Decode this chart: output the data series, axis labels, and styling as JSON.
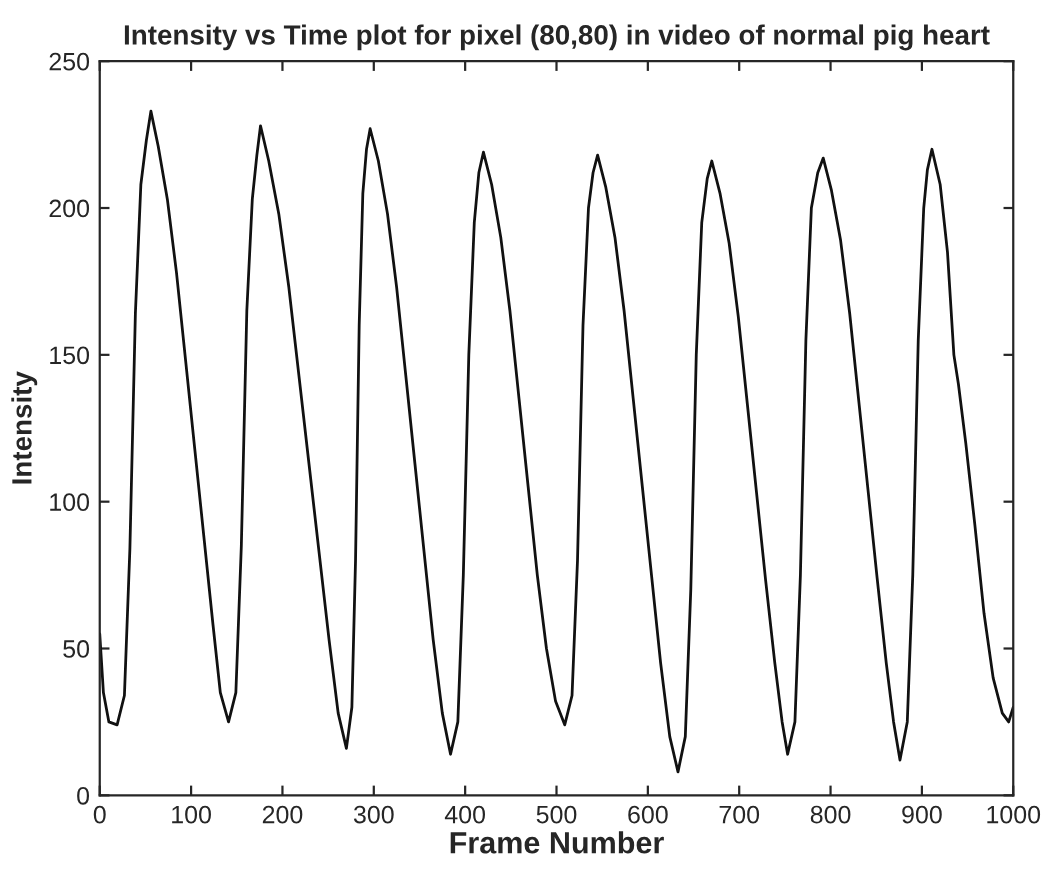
{
  "chart_data": {
    "type": "line",
    "title": "Intensity vs Time plot for pixel (80,80) in video of normal pig heart",
    "xlabel": "Frame Number",
    "ylabel": "Intensity",
    "xlim": [
      0,
      1000
    ],
    "xticks": [
      0,
      100,
      200,
      300,
      400,
      500,
      600,
      700,
      800,
      900,
      1000
    ],
    "ylim": [
      0,
      250
    ],
    "yticks": [
      0,
      50,
      100,
      150,
      200,
      250
    ],
    "grid": false,
    "legend": false,
    "series": [
      {
        "color": "#111111",
        "x": [
          0,
          4,
          10,
          19,
          27,
          33,
          39,
          45,
          51,
          56,
          64,
          74,
          84,
          94,
          104,
          114,
          124,
          132,
          141,
          149,
          155,
          161,
          167,
          172,
          176,
          185,
          196,
          207,
          218,
          229,
          240,
          251,
          261,
          270,
          276,
          280,
          284,
          288,
          292,
          296,
          305,
          315,
          325,
          335,
          345,
          355,
          365,
          375,
          384,
          392,
          398,
          404,
          410,
          415,
          420,
          429,
          439,
          449,
          459,
          469,
          479,
          489,
          499,
          509,
          517,
          523,
          529,
          535,
          540,
          545,
          554,
          564,
          574,
          584,
          594,
          604,
          614,
          624,
          633,
          641,
          647,
          653,
          659,
          665,
          670,
          679,
          689,
          699,
          709,
          719,
          729,
          739,
          747,
          753,
          761,
          767,
          773,
          779,
          786,
          792,
          801,
          811,
          821,
          831,
          841,
          851,
          861,
          869,
          876,
          884,
          890,
          896,
          902,
          906,
          911,
          920,
          928,
          935,
          940,
          948,
          958,
          968,
          978,
          988,
          995,
          1000
        ],
        "values": [
          55,
          35,
          25,
          24,
          34,
          84,
          164,
          208,
          223,
          233,
          221,
          203,
          178,
          148,
          118,
          88,
          58,
          35,
          25,
          35,
          85,
          165,
          203,
          218,
          228,
          216,
          198,
          173,
          143,
          113,
          83,
          53,
          28,
          16,
          30,
          80,
          160,
          205,
          220,
          227,
          216,
          198,
          173,
          143,
          113,
          83,
          53,
          28,
          14,
          25,
          75,
          150,
          195,
          212,
          219,
          208,
          190,
          165,
          135,
          105,
          75,
          50,
          32,
          24,
          34,
          80,
          160,
          200,
          212,
          218,
          207,
          190,
          165,
          135,
          105,
          75,
          45,
          20,
          8,
          20,
          70,
          150,
          195,
          210,
          216,
          205,
          188,
          163,
          133,
          103,
          73,
          45,
          25,
          14,
          25,
          75,
          155,
          200,
          212,
          217,
          206,
          189,
          164,
          134,
          104,
          74,
          45,
          25,
          12,
          25,
          75,
          155,
          200,
          213,
          220,
          208,
          185,
          150,
          140,
          120,
          92,
          62,
          40,
          28,
          25,
          30
        ]
      }
    ]
  }
}
